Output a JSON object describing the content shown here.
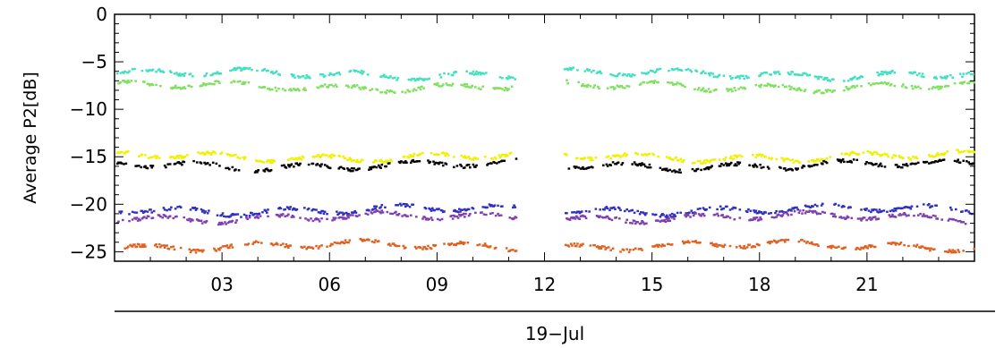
{
  "chart_data": {
    "type": "scatter",
    "title": "",
    "ylabel": "Average  P2[dB]",
    "xlabel": "19−Jul",
    "ylim": [
      -26,
      0
    ],
    "xlim": [
      0,
      24
    ],
    "yticks": [
      {
        "value": 0,
        "label": "0"
      },
      {
        "value": -5,
        "label": "−5"
      },
      {
        "value": -10,
        "label": "−10"
      },
      {
        "value": -15,
        "label": "−15"
      },
      {
        "value": -20,
        "label": "−20"
      },
      {
        "value": -25,
        "label": "−25"
      }
    ],
    "xticks": [
      {
        "value": 3,
        "label": "03"
      },
      {
        "value": 6,
        "label": "06"
      },
      {
        "value": 9,
        "label": "09"
      },
      {
        "value": 12,
        "label": "12"
      },
      {
        "value": 15,
        "label": "15"
      },
      {
        "value": 18,
        "label": "18"
      },
      {
        "value": 21,
        "label": "21"
      }
    ],
    "gap_hours": [
      11.2,
      12.5
    ],
    "series": [
      {
        "color": "#40e0c0",
        "level": -6.3
      },
      {
        "color": "#80e060",
        "level": -7.6
      },
      {
        "color": "#f0f000",
        "level": -15.0
      },
      {
        "color": "#000000",
        "level": -15.9
      },
      {
        "color": "#3030c0",
        "level": -20.6
      },
      {
        "color": "#8040b0",
        "level": -21.4
      },
      {
        "color": "#e06020",
        "level": -24.4
      }
    ]
  }
}
